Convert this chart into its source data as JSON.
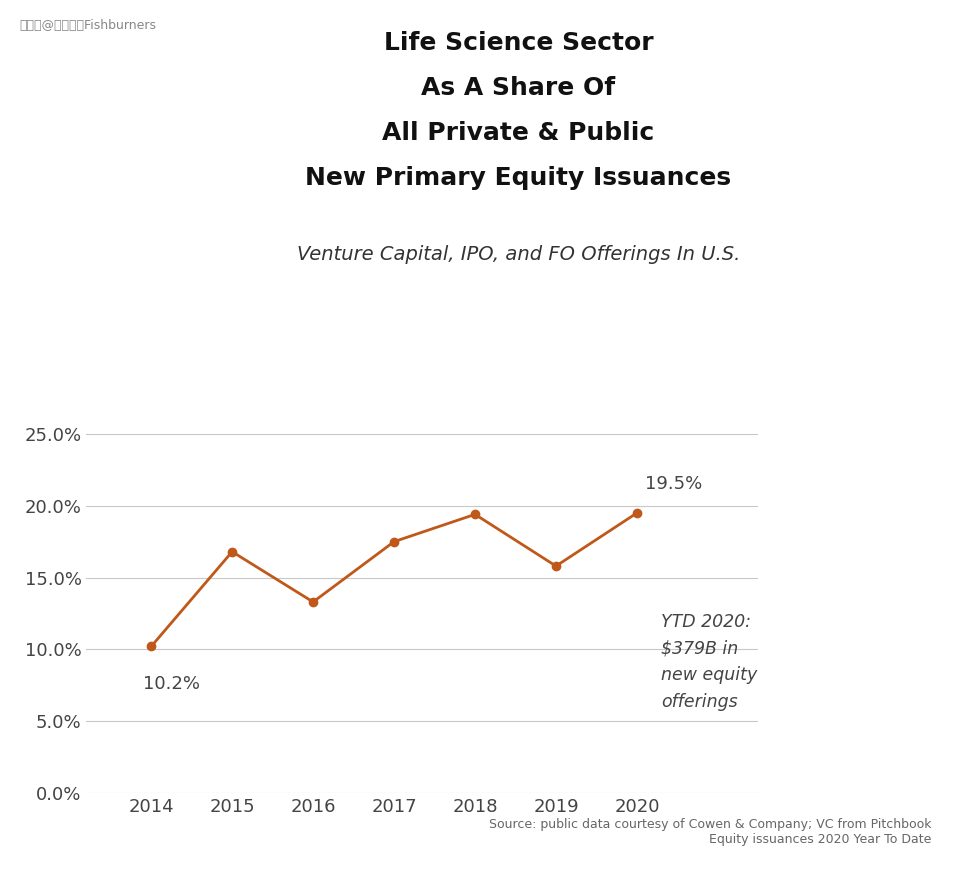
{
  "title_lines": [
    "Life Science Sector",
    "As A Share Of",
    "All Private & Public",
    "New Primary Equity Issuances"
  ],
  "subtitle": "Venture Capital, IPO, and FO Offerings In U.S.",
  "years": [
    2014,
    2015,
    2016,
    2017,
    2018,
    2019,
    2020
  ],
  "values": [
    0.102,
    0.168,
    0.133,
    0.175,
    0.194,
    0.158,
    0.195
  ],
  "line_color": "#C0581A",
  "marker": "o",
  "marker_size": 6,
  "ylim": [
    0.0,
    0.27
  ],
  "yticks": [
    0.0,
    0.05,
    0.1,
    0.15,
    0.2,
    0.25
  ],
  "ytick_labels": [
    "0.0%",
    "5.0%",
    "10.0%",
    "15.0%",
    "20.0%",
    "25.0%"
  ],
  "annotation_2014_text": "10.2%",
  "annotation_2020_text": "19.5%",
  "annotation_ytd_text": "YTD 2020:\n$379B in\nnew equity\nofferings",
  "source_text": "Source: public data courtesy of Cowen & Company; VC from Pitchbook\nEquity issuances 2020 Year To Date",
  "watermark": "搜狐号@飞仕伯乐Fishburners",
  "background_color": "#ffffff",
  "grid_color": "#c8c8c8",
  "title_fontsize": 18,
  "subtitle_fontsize": 14,
  "tick_fontsize": 13,
  "annot_fontsize": 13,
  "source_fontsize": 9,
  "watermark_fontsize": 9,
  "xlim_left": 2013.2,
  "xlim_right": 2021.5
}
